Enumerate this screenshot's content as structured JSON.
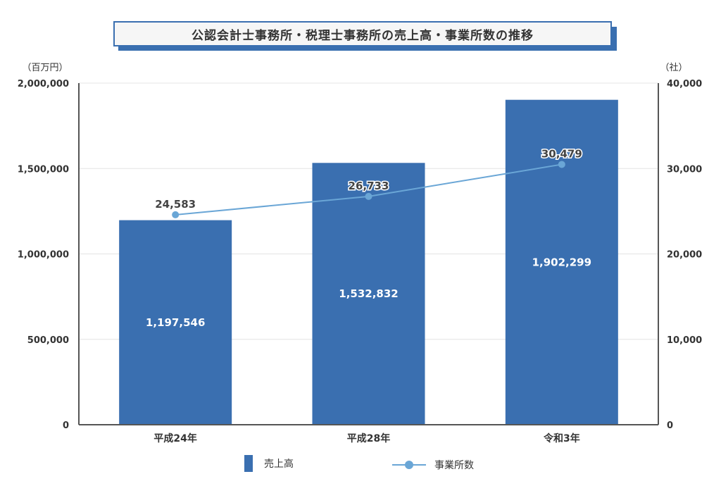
{
  "chart_data": {
    "type": "bar",
    "title": "公認会計士事務所・税理士事務所の売上高・事業所数の推移",
    "categories": [
      "平成24年",
      "平成28年",
      "令和3年"
    ],
    "y_left_unit": "（百万円）",
    "y_right_unit": "（社）",
    "y_left_ticks": [
      "0",
      "500,000",
      "1,000,000",
      "1,500,000",
      "2,000,000"
    ],
    "y_right_ticks": [
      "0",
      "10,000",
      "20,000",
      "30,000",
      "40,000"
    ],
    "ylim_left": [
      0,
      2000000
    ],
    "ylim_right": [
      0,
      40000
    ],
    "grid": true,
    "legend_placement": "bottom",
    "series": [
      {
        "name": "売上高",
        "kind": "bar",
        "axis": "left",
        "color": "#3a6fb0",
        "values": [
          1197546,
          1532832,
          1902299
        ],
        "labels": [
          "1,197,546",
          "1,532,832",
          "1,902,299"
        ]
      },
      {
        "name": "事業所数",
        "kind": "line",
        "axis": "right",
        "color": "#6aa6d6",
        "values": [
          24583,
          26733,
          30479
        ],
        "labels": [
          "24,583",
          "26,733",
          "30,479"
        ]
      }
    ]
  }
}
